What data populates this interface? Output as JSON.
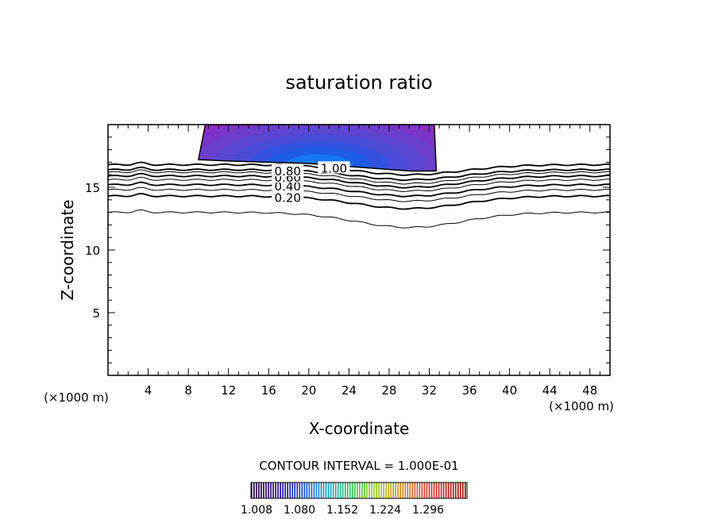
{
  "chart_data": {
    "type": "contour",
    "title": "saturation ratio",
    "xlabel": "X-coordinate",
    "ylabel": "Z-coordinate",
    "x_unit_left": "(×1000 m)",
    "x_unit_right": "(×1000 m)",
    "xlim": [
      0,
      50
    ],
    "ylim": [
      0,
      20
    ],
    "x_ticks": [
      4,
      8,
      12,
      16,
      20,
      24,
      28,
      32,
      36,
      40,
      44,
      48
    ],
    "y_ticks": [
      5,
      10,
      15
    ],
    "contour_interval_text": "CONTOUR INTERVAL = 1.000E-01",
    "contour_levels": [
      {
        "label": "0.20",
        "z_left": 14.3,
        "z_min": 13.3,
        "x_min": 30
      },
      {
        "label": "0.40",
        "z_left": 15.2,
        "z_min": 14.3,
        "x_min": 30
      },
      {
        "label": "0.60",
        "z_left": 15.9,
        "z_min": 15.0,
        "x_min": 30
      },
      {
        "label": "0.80",
        "z_left": 16.4,
        "z_min": 15.6,
        "x_min": 30
      },
      {
        "label": "1.00",
        "z_left": 16.8,
        "z_min": 16.0,
        "x_min": 30
      }
    ],
    "unlabeled_contours": [
      {
        "z_left": 13.0,
        "z_min": 11.8,
        "x_min": 30
      },
      {
        "z_left": 14.8,
        "z_min": 13.9,
        "x_min": 30
      },
      {
        "z_left": 15.6,
        "z_min": 14.7,
        "x_min": 30
      },
      {
        "z_left": 16.2,
        "z_min": 15.3,
        "x_min": 30
      }
    ],
    "shaded_region": {
      "description_values": {
        "x_start": 9,
        "x_end": 32.5,
        "z_bottom": 17.2,
        "z_top": 20
      },
      "colors": [
        "#8a2cc4",
        "#7a34c8",
        "#6a40cc",
        "#5a46d0",
        "#4a4cd8",
        "#3452e0",
        "#1e5ce8",
        "#1478f0"
      ]
    },
    "colorbar": {
      "labels": [
        "1.008",
        "1.080",
        "1.152",
        "1.224",
        "1.296"
      ],
      "colors": [
        "#1a0030",
        "#28006a",
        "#2010a8",
        "#1040d8",
        "#1a80e0",
        "#20b0b0",
        "#30c060",
        "#70d030",
        "#b0c020",
        "#d09020",
        "#d06030",
        "#d03030",
        "#c01818",
        "#a00808"
      ]
    }
  }
}
